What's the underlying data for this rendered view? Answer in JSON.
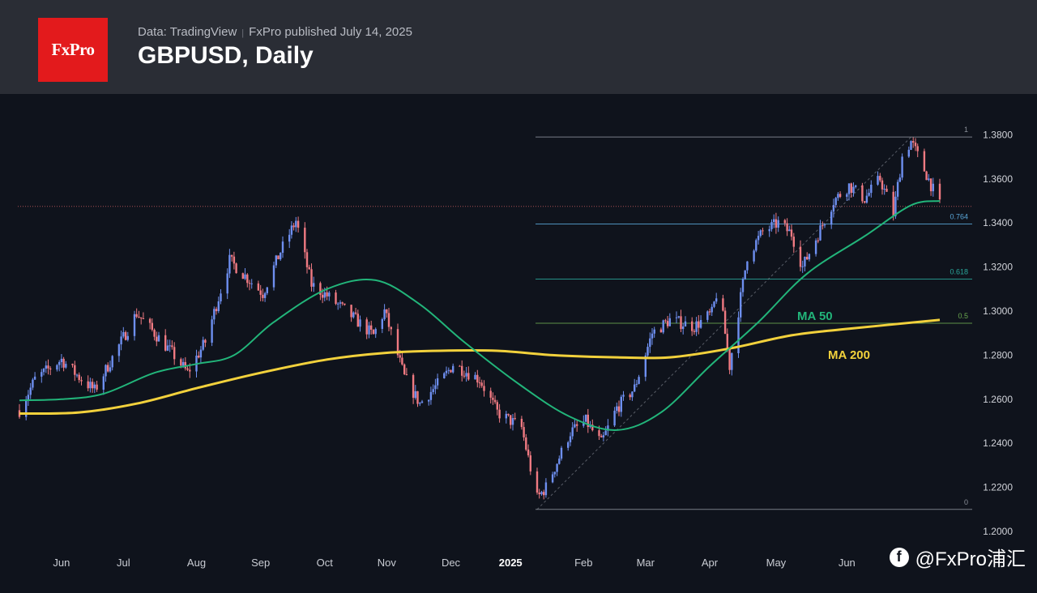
{
  "header": {
    "logo_text": "FxPro",
    "source": "Data: TradingView",
    "separator": "|",
    "published": "FxPro published July 14, 2025",
    "title": "GBPUSD, Daily"
  },
  "watermark": {
    "icon": "f",
    "text": "@FxPro浦汇"
  },
  "colors": {
    "background": "#0f131c",
    "header": "#2a2d35",
    "logo": "#e31a1c",
    "up_candle": "#6e8ff0",
    "down_candle": "#f07a82",
    "ma50": "#22b57a",
    "ma200": "#f2d13c",
    "fib_line": "#8a8f99",
    "fib_0764": "#5aa7d8",
    "fib_0618": "#2aa79b",
    "fib_05": "#6aa84f",
    "resistance": "#d06060"
  },
  "chart_data": {
    "type": "candlestick",
    "title": "GBPUSD, Daily",
    "ylim": [
      1.2,
      1.4
    ],
    "yticks": [
      "1.2000",
      "1.2200",
      "1.2400",
      "1.2600",
      "1.2800",
      "1.3000",
      "1.3200",
      "1.3400",
      "1.3600",
      "1.3800"
    ],
    "xticks": [
      "Jun",
      "Jul",
      "Aug",
      "Sep",
      "Oct",
      "Nov",
      "Dec",
      "2025",
      "Feb",
      "Mar",
      "Apr",
      "May",
      "Jun"
    ],
    "price_path": [
      [
        "2024-05-24",
        1.255
      ],
      [
        "2024-05-31",
        1.269
      ],
      [
        "2024-06-12",
        1.278
      ],
      [
        "2024-06-20",
        1.27
      ],
      [
        "2024-06-27",
        1.264
      ],
      [
        "2024-07-04",
        1.277
      ],
      [
        "2024-07-16",
        1.299
      ],
      [
        "2024-07-24",
        1.29
      ],
      [
        "2024-08-01",
        1.281
      ],
      [
        "2024-08-08",
        1.272
      ],
      [
        "2024-08-16",
        1.286
      ],
      [
        "2024-08-27",
        1.323
      ],
      [
        "2024-09-05",
        1.314
      ],
      [
        "2024-09-11",
        1.308
      ],
      [
        "2024-09-19",
        1.327
      ],
      [
        "2024-09-26",
        1.341
      ],
      [
        "2024-10-03",
        1.312
      ],
      [
        "2024-10-10",
        1.307
      ],
      [
        "2024-10-22",
        1.297
      ],
      [
        "2024-10-31",
        1.289
      ],
      [
        "2024-11-05",
        1.3
      ],
      [
        "2024-11-14",
        1.27
      ],
      [
        "2024-11-21",
        1.258
      ],
      [
        "2024-12-02",
        1.27
      ],
      [
        "2024-12-06",
        1.276
      ],
      [
        "2024-12-18",
        1.269
      ],
      [
        "2024-12-26",
        1.254
      ],
      [
        "2025-01-06",
        1.247
      ],
      [
        "2025-01-13",
        1.215
      ],
      [
        "2025-01-17",
        1.22
      ],
      [
        "2025-01-28",
        1.245
      ],
      [
        "2025-02-04",
        1.25
      ],
      [
        "2025-02-11",
        1.24
      ],
      [
        "2025-02-18",
        1.256
      ],
      [
        "2025-02-26",
        1.265
      ],
      [
        "2025-03-06",
        1.29
      ],
      [
        "2025-03-14",
        1.296
      ],
      [
        "2025-03-25",
        1.293
      ],
      [
        "2025-04-02",
        1.299
      ],
      [
        "2025-04-05",
        1.312
      ],
      [
        "2025-04-10",
        1.275
      ],
      [
        "2025-04-18",
        1.325
      ],
      [
        "2025-04-25",
        1.336
      ],
      [
        "2025-05-02",
        1.34
      ],
      [
        "2025-05-08",
        1.335
      ],
      [
        "2025-05-13",
        1.32
      ],
      [
        "2025-05-20",
        1.335
      ],
      [
        "2025-05-27",
        1.35
      ],
      [
        "2025-06-03",
        1.357
      ],
      [
        "2025-06-10",
        1.351
      ],
      [
        "2025-06-17",
        1.36
      ],
      [
        "2025-06-23",
        1.344
      ],
      [
        "2025-06-27",
        1.37
      ],
      [
        "2025-07-01",
        1.377
      ],
      [
        "2025-07-08",
        1.362
      ],
      [
        "2025-07-14",
        1.348
      ]
    ],
    "ma50_path": [
      [
        "2024-05-24",
        1.2595
      ],
      [
        "2024-06-12",
        1.26
      ],
      [
        "2024-07-01",
        1.2625
      ],
      [
        "2024-07-24",
        1.272
      ],
      [
        "2024-08-12",
        1.276
      ],
      [
        "2024-08-29",
        1.28
      ],
      [
        "2024-09-16",
        1.295
      ],
      [
        "2024-10-10",
        1.31
      ],
      [
        "2024-11-01",
        1.314
      ],
      [
        "2024-11-21",
        1.303
      ],
      [
        "2024-12-11",
        1.286
      ],
      [
        "2025-01-06",
        1.266
      ],
      [
        "2025-01-28",
        1.252
      ],
      [
        "2025-02-18",
        1.246
      ],
      [
        "2025-03-10",
        1.254
      ],
      [
        "2025-04-01",
        1.275
      ],
      [
        "2025-04-23",
        1.295
      ],
      [
        "2025-05-15",
        1.317
      ],
      [
        "2025-06-10",
        1.334
      ],
      [
        "2025-07-01",
        1.348
      ],
      [
        "2025-07-14",
        1.35
      ]
    ],
    "ma200_path": [
      [
        "2024-05-24",
        1.2535
      ],
      [
        "2024-06-20",
        1.254
      ],
      [
        "2024-07-16",
        1.258
      ],
      [
        "2024-08-12",
        1.265
      ],
      [
        "2024-09-10",
        1.272
      ],
      [
        "2024-10-10",
        1.278
      ],
      [
        "2024-11-05",
        1.281
      ],
      [
        "2024-11-30",
        1.282
      ],
      [
        "2024-12-26",
        1.282
      ],
      [
        "2025-01-20",
        1.28
      ],
      [
        "2025-02-18",
        1.279
      ],
      [
        "2025-03-14",
        1.279
      ],
      [
        "2025-04-10",
        1.283
      ],
      [
        "2025-05-08",
        1.289
      ],
      [
        "2025-06-03",
        1.292
      ],
      [
        "2025-07-14",
        1.296
      ]
    ],
    "resistance_level": 1.3475,
    "fibonacci": {
      "start_date": "2025-01-13",
      "end_date": "2025-07-14",
      "levels": [
        {
          "label": "1",
          "value": 1.379
        },
        {
          "label": "0.764",
          "value": 1.3395
        },
        {
          "label": "0.618",
          "value": 1.3145
        },
        {
          "label": "0.5",
          "value": 1.2945
        },
        {
          "label": "0",
          "value": 1.21
        }
      ]
    },
    "series": [
      {
        "name": "MA 50",
        "label": "MA 50"
      },
      {
        "name": "MA 200",
        "label": "MA 200"
      }
    ]
  }
}
